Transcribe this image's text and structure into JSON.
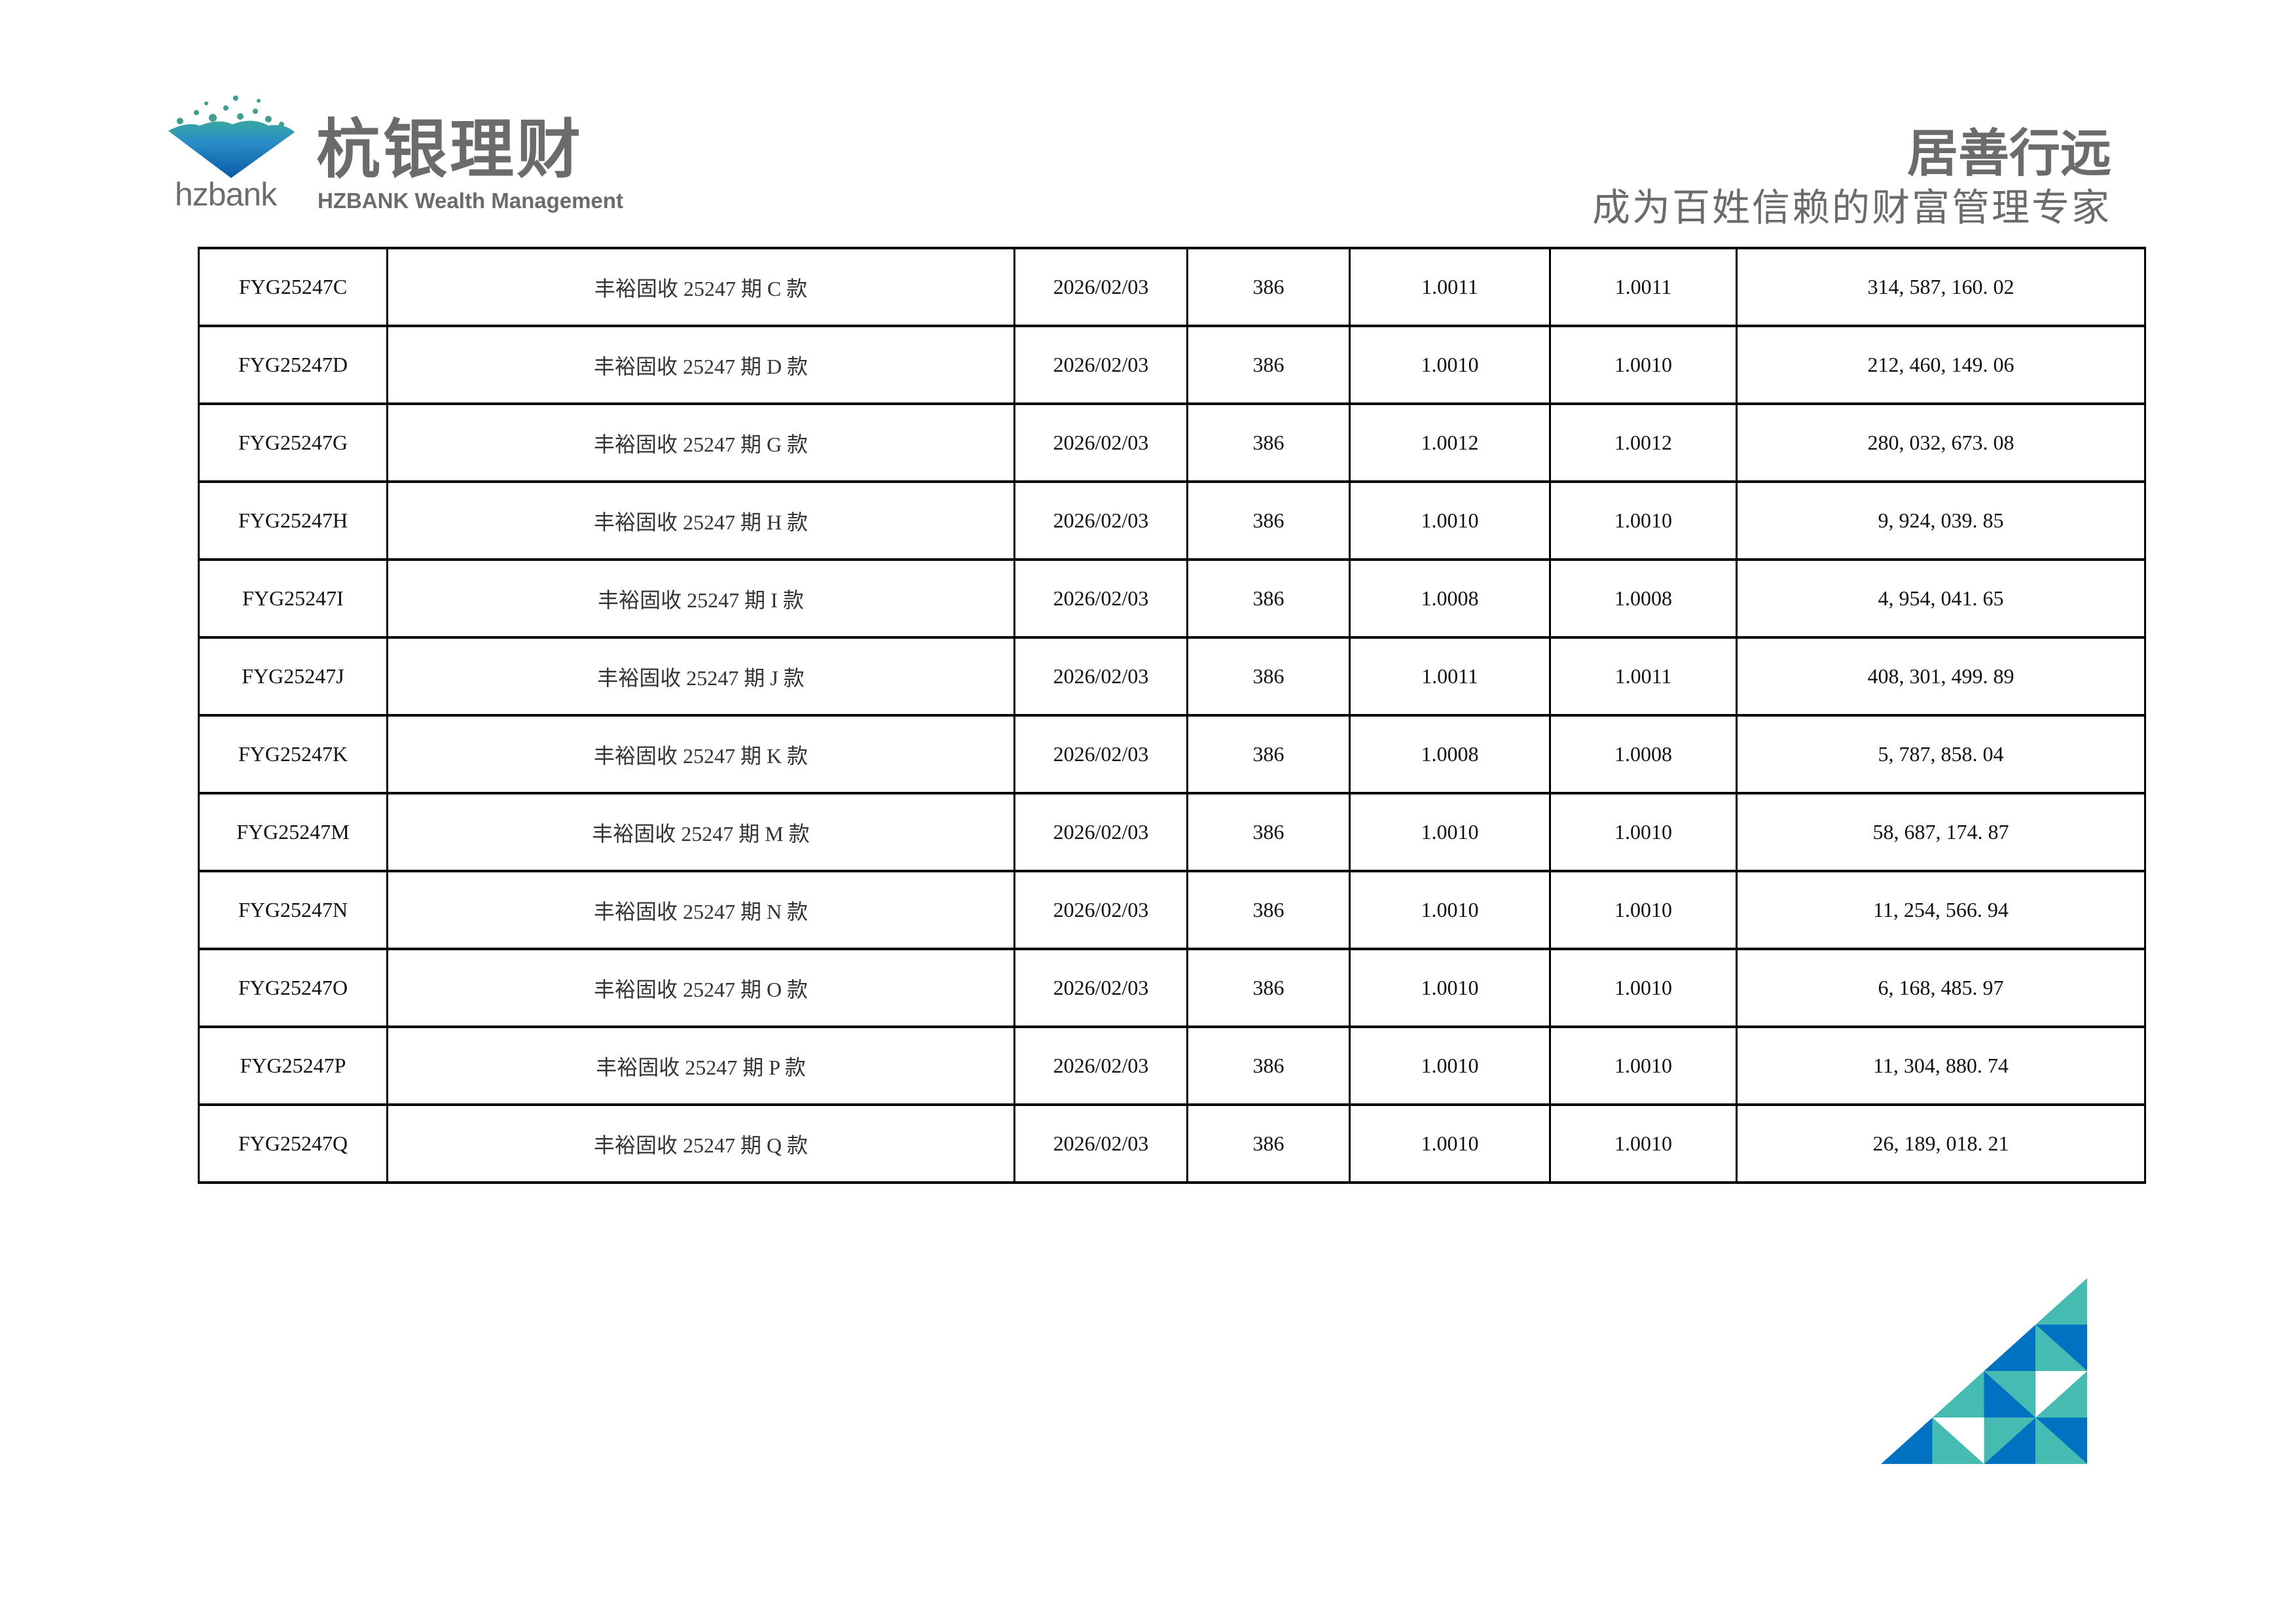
{
  "header": {
    "logo": {
      "brand_short": "hzbank",
      "name_cn": "杭银理财",
      "name_en": "HZBANK Wealth Management"
    },
    "slogan": "居善行远",
    "tagline": "成为百姓信赖的财富管理专家"
  },
  "colors": {
    "brand_blue": "#0072c1",
    "brand_teal": "#46bbb1",
    "logo_gray": "#6b6b6b"
  },
  "table": {
    "rows": [
      [
        "FYG25247C",
        "丰裕固收 25247 期 C 款",
        "2026/02/03",
        "386",
        "1.0011",
        "1.0011",
        "314, 587, 160. 02"
      ],
      [
        "FYG25247D",
        "丰裕固收 25247 期 D 款",
        "2026/02/03",
        "386",
        "1.0010",
        "1.0010",
        "212, 460, 149. 06"
      ],
      [
        "FYG25247G",
        "丰裕固收 25247 期 G 款",
        "2026/02/03",
        "386",
        "1.0012",
        "1.0012",
        "280, 032, 673. 08"
      ],
      [
        "FYG25247H",
        "丰裕固收 25247 期 H 款",
        "2026/02/03",
        "386",
        "1.0010",
        "1.0010",
        "9, 924, 039. 85"
      ],
      [
        "FYG25247I",
        "丰裕固收 25247 期 I 款",
        "2026/02/03",
        "386",
        "1.0008",
        "1.0008",
        "4, 954, 041. 65"
      ],
      [
        "FYG25247J",
        "丰裕固收 25247 期 J 款",
        "2026/02/03",
        "386",
        "1.0011",
        "1.0011",
        "408, 301, 499. 89"
      ],
      [
        "FYG25247K",
        "丰裕固收 25247 期 K 款",
        "2026/02/03",
        "386",
        "1.0008",
        "1.0008",
        "5, 787, 858. 04"
      ],
      [
        "FYG25247M",
        "丰裕固收 25247 期 M 款",
        "2026/02/03",
        "386",
        "1.0010",
        "1.0010",
        "58, 687, 174. 87"
      ],
      [
        "FYG25247N",
        "丰裕固收 25247 期 N 款",
        "2026/02/03",
        "386",
        "1.0010",
        "1.0010",
        "11, 254, 566. 94"
      ],
      [
        "FYG25247O",
        "丰裕固收 25247 期 O 款",
        "2026/02/03",
        "386",
        "1.0010",
        "1.0010",
        "6, 168, 485. 97"
      ],
      [
        "FYG25247P",
        "丰裕固收 25247 期 P 款",
        "2026/02/03",
        "386",
        "1.0010",
        "1.0010",
        "11, 304, 880. 74"
      ],
      [
        "FYG25247Q",
        "丰裕固收 25247 期 Q 款",
        "2026/02/03",
        "386",
        "1.0010",
        "1.0010",
        "26, 189, 018. 21"
      ]
    ]
  }
}
